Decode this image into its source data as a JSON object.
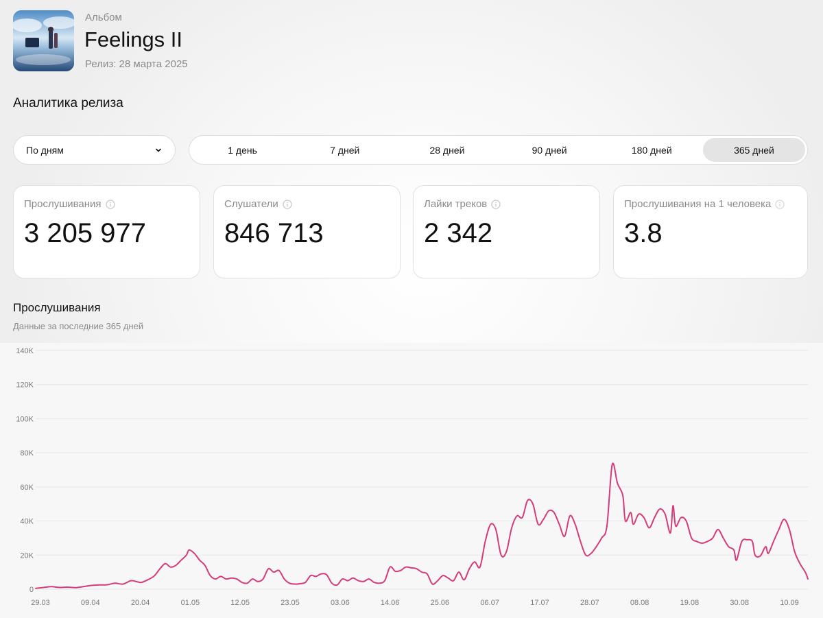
{
  "header": {
    "type_label": "Альбом",
    "title": "Feelings II",
    "release": "Релиз: 28 марта 2025"
  },
  "section_title": "Аналитика релиза",
  "grouping": {
    "selected": "По дням",
    "icon": "chevron-down-icon"
  },
  "periods": [
    {
      "label": "1 день",
      "active": false
    },
    {
      "label": "7 дней",
      "active": false
    },
    {
      "label": "28 дней",
      "active": false
    },
    {
      "label": "90 дней",
      "active": false
    },
    {
      "label": "180 дней",
      "active": false
    },
    {
      "label": "365 дней",
      "active": true
    }
  ],
  "stats": [
    {
      "label": "Прослушивания",
      "value": "3 205 977"
    },
    {
      "label": "Слушатели",
      "value": "846 713"
    },
    {
      "label": "Лайки треков",
      "value": "2 342"
    },
    {
      "label": "Прослушивания на 1 человека",
      "value": "3.8"
    }
  ],
  "chart_section": {
    "title": "Прослушивания",
    "subtitle": "Данные за последние 365 дней"
  },
  "colors": {
    "line": "#d63a78",
    "active_tab": "#e4e4e4"
  },
  "chart_data": {
    "type": "line",
    "ylim": [
      0,
      140000
    ],
    "yticks": [
      "0",
      "20K",
      "40K",
      "60K",
      "80K",
      "100K",
      "120K",
      "140K"
    ],
    "xticks": [
      "29.03",
      "09.04",
      "20.04",
      "01.05",
      "12.05",
      "23.05",
      "03.06",
      "14.06",
      "25.06",
      "06.07",
      "17.07",
      "28.07",
      "08.08",
      "19.08",
      "30.08",
      "10.09"
    ],
    "series": [
      {
        "points": [
          [
            0,
            500
          ],
          [
            3,
            1000
          ],
          [
            6,
            1500
          ],
          [
            9,
            1000
          ],
          [
            12,
            1200
          ],
          [
            15,
            900
          ],
          [
            18,
            1500
          ],
          [
            21,
            2200
          ],
          [
            24,
            2500
          ],
          [
            27,
            2600
          ],
          [
            30,
            3500
          ],
          [
            33,
            3000
          ],
          [
            36,
            5000
          ],
          [
            38,
            4500
          ],
          [
            40,
            4000
          ],
          [
            43,
            6000
          ],
          [
            45,
            8000
          ],
          [
            47,
            12000
          ],
          [
            49,
            15000
          ],
          [
            51,
            13000
          ],
          [
            53,
            14000
          ],
          [
            55,
            17000
          ],
          [
            57,
            20000
          ],
          [
            58,
            23000
          ],
          [
            60,
            21000
          ],
          [
            62,
            17000
          ],
          [
            64,
            14000
          ],
          [
            66,
            8000
          ],
          [
            68,
            6000
          ],
          [
            70,
            7500
          ],
          [
            72,
            6000
          ],
          [
            74,
            6500
          ],
          [
            76,
            6000
          ],
          [
            78,
            4000
          ],
          [
            80,
            3500
          ],
          [
            82,
            6000
          ],
          [
            84,
            4500
          ],
          [
            86,
            6000
          ],
          [
            88,
            12000
          ],
          [
            90,
            10000
          ],
          [
            92,
            11000
          ],
          [
            94,
            6000
          ],
          [
            96,
            3500
          ],
          [
            98,
            3000
          ],
          [
            100,
            3200
          ],
          [
            102,
            4000
          ],
          [
            104,
            8000
          ],
          [
            106,
            7500
          ],
          [
            108,
            9000
          ],
          [
            110,
            8500
          ],
          [
            112,
            3500
          ],
          [
            114,
            2500
          ],
          [
            116,
            6000
          ],
          [
            118,
            5000
          ],
          [
            120,
            6500
          ],
          [
            122,
            5000
          ],
          [
            124,
            4500
          ],
          [
            126,
            6000
          ],
          [
            128,
            4000
          ],
          [
            130,
            3500
          ],
          [
            132,
            5000
          ],
          [
            134,
            13000
          ],
          [
            136,
            10500
          ],
          [
            138,
            11000
          ],
          [
            140,
            13000
          ],
          [
            142,
            12500
          ],
          [
            144,
            12000
          ],
          [
            146,
            10000
          ],
          [
            148,
            9000
          ],
          [
            150,
            3000
          ],
          [
            152,
            5000
          ],
          [
            154,
            8000
          ],
          [
            156,
            6500
          ],
          [
            158,
            5000
          ],
          [
            160,
            10000
          ],
          [
            162,
            5500
          ],
          [
            164,
            12000
          ],
          [
            166,
            16000
          ],
          [
            168,
            13000
          ],
          [
            170,
            28000
          ],
          [
            172,
            38000
          ],
          [
            174,
            35000
          ],
          [
            176,
            20000
          ],
          [
            178,
            22000
          ],
          [
            180,
            36000
          ],
          [
            182,
            43000
          ],
          [
            184,
            42000
          ],
          [
            186,
            52000
          ],
          [
            188,
            50000
          ],
          [
            190,
            38000
          ],
          [
            192,
            41000
          ],
          [
            194,
            46000
          ],
          [
            196,
            45000
          ],
          [
            198,
            38000
          ],
          [
            200,
            31000
          ],
          [
            202,
            43000
          ],
          [
            204,
            38000
          ],
          [
            206,
            28000
          ],
          [
            208,
            20000
          ],
          [
            210,
            21000
          ],
          [
            212,
            25000
          ],
          [
            214,
            30000
          ],
          [
            216,
            37000
          ],
          [
            218,
            73000
          ],
          [
            220,
            62000
          ],
          [
            222,
            55000
          ],
          [
            223,
            40000
          ],
          [
            225,
            45000
          ],
          [
            226,
            38000
          ],
          [
            228,
            44000
          ],
          [
            230,
            42000
          ],
          [
            232,
            36000
          ],
          [
            234,
            42000
          ],
          [
            236,
            47000
          ],
          [
            238,
            44000
          ],
          [
            240,
            33000
          ],
          [
            241,
            49000
          ],
          [
            242,
            37000
          ],
          [
            244,
            42000
          ],
          [
            246,
            40000
          ],
          [
            248,
            30000
          ],
          [
            250,
            28000
          ],
          [
            252,
            27000
          ],
          [
            254,
            28000
          ],
          [
            256,
            30000
          ],
          [
            258,
            35000
          ],
          [
            260,
            30000
          ],
          [
            262,
            25000
          ],
          [
            264,
            23000
          ],
          [
            265,
            17000
          ],
          [
            267,
            28000
          ],
          [
            269,
            29000
          ],
          [
            271,
            28000
          ],
          [
            272,
            20000
          ],
          [
            274,
            19500
          ],
          [
            276,
            25000
          ],
          [
            277,
            21000
          ],
          [
            279,
            28000
          ],
          [
            281,
            35000
          ],
          [
            283,
            41000
          ],
          [
            285,
            35000
          ],
          [
            287,
            22000
          ],
          [
            289,
            15000
          ],
          [
            291,
            10000
          ],
          [
            292,
            6000
          ]
        ]
      }
    ]
  }
}
